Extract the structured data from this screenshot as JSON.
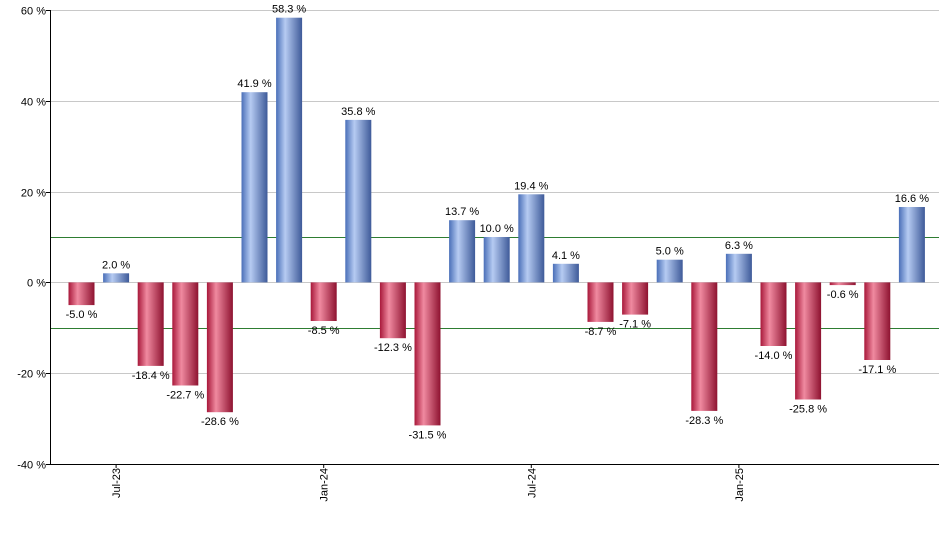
{
  "chart_data": {
    "type": "bar",
    "title": "",
    "xlabel": "",
    "ylabel": "",
    "ylim": [
      -40,
      60
    ],
    "y_ticks": [
      -40,
      -20,
      0,
      20,
      40,
      60
    ],
    "y_tick_labels": [
      "-40 %",
      "-20 %",
      "0 %",
      "20 %",
      "40 %",
      "60 %"
    ],
    "grid": true,
    "reference_lines": [
      10,
      -10
    ],
    "x_tick_labels": [
      {
        "index": 1,
        "label": "Jul-23"
      },
      {
        "index": 7,
        "label": "Jan-24"
      },
      {
        "index": 13,
        "label": "Jul-24"
      },
      {
        "index": 19,
        "label": "Jan-25"
      }
    ],
    "values": [
      -5.0,
      2.0,
      -18.4,
      -22.7,
      -28.6,
      41.9,
      58.3,
      -8.5,
      35.8,
      -12.3,
      -31.5,
      13.7,
      10.0,
      19.4,
      4.1,
      -8.7,
      -7.1,
      5.0,
      -28.3,
      6.3,
      -14.0,
      -25.8,
      -0.6,
      -17.1,
      16.6
    ],
    "value_labels": [
      "-5.0 %",
      "2.0 %",
      "-18.4 %",
      "-22.7 %",
      "-28.6 %",
      "41.9 %",
      "58.3 %",
      "-8.5 %",
      "35.8 %",
      "-12.3 %",
      "-31.5 %",
      "13.7 %",
      "10.0 %",
      "19.4 %",
      "4.1 %",
      "-8.7 %",
      "-7.1 %",
      "5.0 %",
      "-28.3 %",
      "6.3 %",
      "-14.0 %",
      "-25.8 %",
      "-0.6 %",
      "-17.1 %",
      "16.6 %"
    ],
    "colors": {
      "positive": "#7a9cd8",
      "negative": "#c8304e",
      "reference_line": "#2e7d32",
      "grid": "#c8c8c8",
      "axis": "#000000"
    }
  }
}
